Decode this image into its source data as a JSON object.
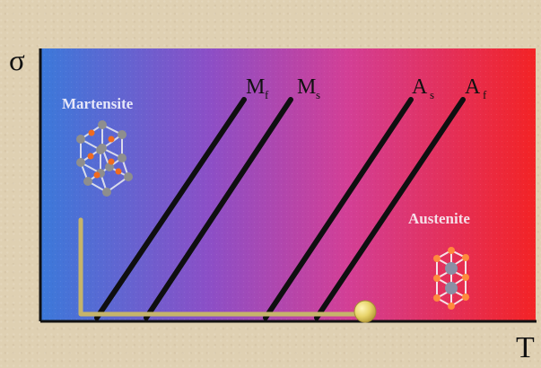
{
  "axes": {
    "y_label": "σ",
    "x_label": "T"
  },
  "labels": {
    "martensite": "Martensite",
    "austenite": "Austenite",
    "mf_main": "M",
    "mf_sub": "f",
    "ms_main": "M",
    "ms_sub": "s",
    "as_main": "A",
    "as_sub": "s",
    "af_main": "A",
    "af_sub": "f"
  },
  "colors": {
    "frame": "#dfd0b2",
    "axis": "#111111",
    "line": "#0f0f10",
    "path": "#c6b46a",
    "ball": "#e8d46a",
    "martensite_node": "#8e8e8e",
    "martensite_atom": "#f06b1f",
    "austenite_node": "#ff8a3d",
    "austenite_atom": "#8a8fa4"
  }
}
